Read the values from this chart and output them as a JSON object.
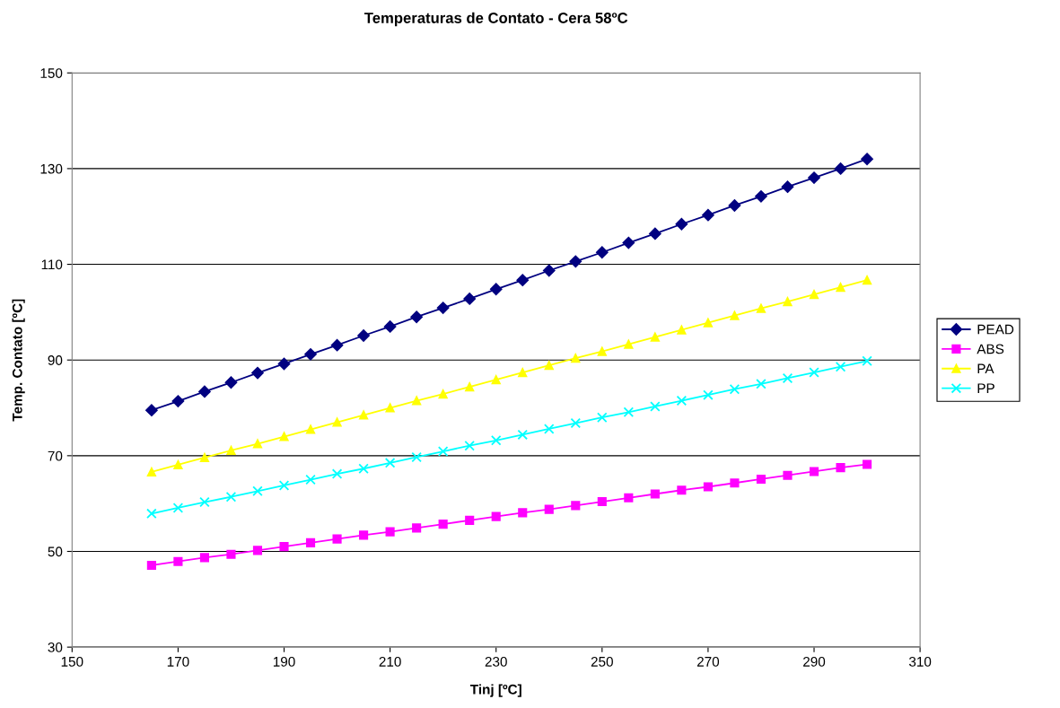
{
  "chart_data": {
    "type": "line",
    "title": "Temperaturas de Contato - Cera 58ºC",
    "xlabel": "Tinj [ºC]",
    "ylabel": "Temp. Contato [ºC]",
    "x": [
      165,
      170,
      175,
      180,
      185,
      190,
      195,
      200,
      205,
      210,
      215,
      220,
      225,
      230,
      235,
      240,
      245,
      250,
      255,
      260,
      265,
      270,
      275,
      280,
      285,
      290,
      295,
      300
    ],
    "series": [
      {
        "name": "PEAD",
        "color": "#000080",
        "marker": "diamond",
        "values": [
          79.5,
          81.4,
          83.4,
          85.3,
          87.3,
          89.2,
          91.2,
          93.1,
          95.1,
          97.0,
          99.0,
          100.9,
          102.8,
          104.8,
          106.7,
          108.7,
          110.6,
          112.5,
          114.5,
          116.4,
          118.4,
          120.3,
          122.3,
          124.2,
          126.2,
          128.1,
          130.0,
          132.0
        ]
      },
      {
        "name": "ABS",
        "color": "#ff00ff",
        "marker": "square",
        "values": [
          47.1,
          47.9,
          48.7,
          49.4,
          50.2,
          51.0,
          51.8,
          52.6,
          53.4,
          54.1,
          54.9,
          55.7,
          56.5,
          57.3,
          58.1,
          58.8,
          59.6,
          60.4,
          61.2,
          62.0,
          62.8,
          63.5,
          64.3,
          65.1,
          65.9,
          66.7,
          67.5,
          68.2
        ]
      },
      {
        "name": "PA",
        "color": "#ffff00",
        "marker": "triangle",
        "values": [
          66.6,
          68.1,
          69.6,
          71.1,
          72.5,
          74.0,
          75.5,
          77.0,
          78.5,
          80.0,
          81.5,
          82.9,
          84.4,
          85.9,
          87.4,
          88.9,
          90.4,
          91.8,
          93.3,
          94.8,
          96.3,
          97.8,
          99.3,
          100.8,
          102.2,
          103.7,
          105.2,
          106.7
        ]
      },
      {
        "name": "PP",
        "color": "#00ffff",
        "marker": "cross",
        "values": [
          57.9,
          59.1,
          60.3,
          61.4,
          62.6,
          63.8,
          65.0,
          66.2,
          67.3,
          68.5,
          69.7,
          70.9,
          72.1,
          73.2,
          74.4,
          75.6,
          76.8,
          78.0,
          79.1,
          80.3,
          81.5,
          82.7,
          83.9,
          85.0,
          86.2,
          87.4,
          88.6,
          89.8
        ]
      }
    ],
    "xlim": [
      150,
      310
    ],
    "xticks": [
      150,
      170,
      190,
      210,
      230,
      250,
      270,
      290,
      310
    ],
    "ylim": [
      30,
      150
    ],
    "yticks": [
      30,
      50,
      70,
      90,
      110,
      130,
      150
    ],
    "grid": "y",
    "legend": "right"
  }
}
